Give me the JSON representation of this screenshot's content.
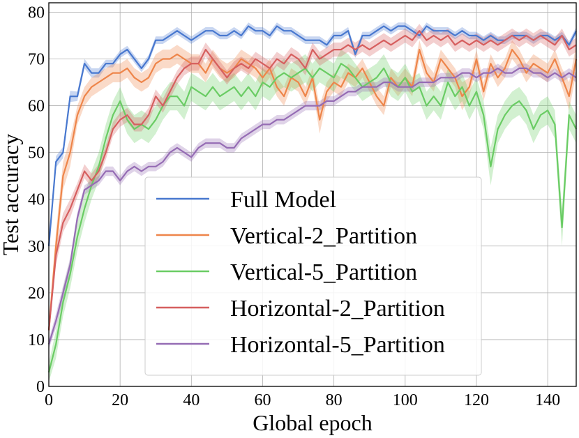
{
  "chart_data": {
    "type": "line",
    "title": "",
    "xlabel": "Global epoch",
    "ylabel": "Test accuracy",
    "xlim": [
      0,
      148
    ],
    "ylim": [
      0,
      82
    ],
    "x_ticks": [
      0,
      20,
      40,
      60,
      80,
      100,
      120,
      140
    ],
    "y_ticks": [
      0,
      10,
      20,
      30,
      40,
      50,
      60,
      70,
      80
    ],
    "grid": true,
    "legend_position": "lower-center",
    "x": [
      0,
      2,
      4,
      6,
      8,
      10,
      12,
      14,
      16,
      18,
      20,
      22,
      24,
      26,
      28,
      30,
      32,
      34,
      36,
      38,
      40,
      42,
      44,
      46,
      48,
      50,
      52,
      54,
      56,
      58,
      60,
      62,
      64,
      66,
      68,
      70,
      72,
      74,
      76,
      78,
      80,
      82,
      84,
      86,
      88,
      90,
      92,
      94,
      96,
      98,
      100,
      102,
      104,
      106,
      108,
      110,
      112,
      114,
      116,
      118,
      120,
      122,
      124,
      126,
      128,
      130,
      132,
      134,
      136,
      138,
      140,
      142,
      144,
      146,
      148
    ],
    "series": [
      {
        "name": "Full Model",
        "color": "#4878cf",
        "values": [
          30,
          48,
          50,
          62,
          62,
          69,
          67,
          67,
          69,
          69,
          71,
          72,
          70,
          68,
          70,
          74,
          74,
          75,
          76,
          75,
          74,
          75,
          76,
          76,
          75,
          75,
          76,
          75,
          77,
          76,
          76,
          75,
          77,
          76,
          76,
          75,
          74,
          74,
          74,
          73,
          75,
          75,
          76,
          71,
          75,
          75,
          76,
          77,
          76,
          77,
          77,
          76,
          75,
          77,
          76,
          76,
          76,
          75,
          76,
          75,
          75,
          74,
          75,
          74,
          74,
          75,
          75,
          75,
          74,
          75,
          75,
          74,
          75,
          73,
          76
        ],
        "band": [
          0.8,
          1.2,
          1.2,
          1.2,
          1.0,
          1.0,
          1.0,
          1.0,
          0.8,
          0.8,
          0.8,
          0.8,
          0.8,
          0.8,
          0.8,
          0.8,
          0.8,
          0.8,
          0.8,
          0.8,
          0.8,
          0.8,
          0.8,
          0.8,
          0.8,
          0.8,
          0.8,
          0.8,
          0.8,
          0.8,
          0.8,
          0.8,
          0.8,
          0.8,
          0.8,
          0.8,
          0.8,
          0.8,
          0.8,
          0.8,
          0.8,
          0.8,
          0.8,
          0.8,
          0.8,
          0.8,
          0.8,
          0.8,
          0.8,
          0.8,
          0.8,
          0.8,
          0.8,
          0.8,
          0.8,
          0.8,
          0.8,
          0.8,
          0.8,
          0.8,
          0.8,
          0.8,
          0.8,
          0.8,
          0.8,
          0.8,
          0.8,
          0.8,
          0.8,
          0.8,
          0.8,
          0.8,
          0.8,
          0.8,
          0.8
        ]
      },
      {
        "name": "Vertical-2_Partition",
        "color": "#ee854a",
        "values": [
          12,
          30,
          45,
          50,
          58,
          62,
          64,
          65,
          66,
          67,
          67,
          68,
          66,
          65,
          66,
          69,
          70,
          70,
          71,
          70,
          69,
          69,
          67,
          70,
          68,
          67,
          68,
          70,
          69,
          68,
          66,
          68,
          64,
          62,
          66,
          65,
          62,
          66,
          57,
          63,
          65,
          64,
          67,
          66,
          68,
          65,
          62,
          60,
          66,
          64,
          66,
          64,
          72,
          67,
          65,
          70,
          68,
          66,
          62,
          64,
          70,
          63,
          69,
          66,
          68,
          72,
          70,
          67,
          69,
          68,
          67,
          70,
          66,
          62,
          70
        ],
        "band": [
          2,
          3,
          3,
          3,
          2,
          2,
          2,
          2,
          2,
          2,
          2,
          2,
          2,
          2,
          2,
          2,
          2,
          2,
          2,
          2,
          2,
          2,
          2,
          2,
          2,
          2,
          2,
          2,
          2,
          2,
          2,
          2,
          2,
          2,
          2,
          2,
          2,
          2,
          3,
          2,
          2,
          2,
          2,
          2,
          2,
          2,
          2,
          2,
          2,
          2,
          2,
          2,
          2,
          2,
          2,
          2,
          2,
          2,
          3,
          2,
          2,
          2,
          2,
          2,
          2,
          2,
          2,
          2,
          2,
          2,
          2,
          2,
          2,
          3,
          3
        ]
      },
      {
        "name": "Vertical-5_Partition",
        "color": "#6acc64",
        "values": [
          3,
          9,
          18,
          24,
          32,
          38,
          43,
          47,
          53,
          58,
          61,
          57,
          55,
          56,
          55,
          57,
          60,
          62,
          62,
          60,
          64,
          63,
          62,
          64,
          62,
          63,
          64,
          62,
          64,
          62,
          65,
          64,
          66,
          67,
          66,
          67,
          68,
          66,
          68,
          67,
          66,
          69,
          68,
          66,
          64,
          65,
          66,
          68,
          65,
          64,
          66,
          63,
          64,
          60,
          62,
          60,
          65,
          62,
          64,
          60,
          63,
          58,
          47,
          55,
          58,
          60,
          61,
          59,
          55,
          58,
          59,
          56,
          34,
          58,
          55
        ],
        "band": [
          2,
          3,
          3,
          3,
          3,
          3,
          3,
          3,
          3,
          3,
          3,
          3,
          3,
          3,
          3,
          3,
          3,
          3,
          3,
          3,
          3,
          3,
          3,
          3,
          3,
          3,
          3,
          3,
          3,
          3,
          3,
          3,
          3,
          3,
          3,
          3,
          3,
          3,
          3,
          3,
          3,
          3,
          3,
          3,
          3,
          3,
          3,
          3,
          3,
          3,
          3,
          3,
          3,
          3,
          3,
          3,
          3,
          3,
          3,
          3,
          3,
          3,
          4,
          3,
          3,
          3,
          3,
          3,
          3,
          3,
          3,
          3,
          4,
          3,
          3
        ]
      },
      {
        "name": "Horizontal-2_Partition",
        "color": "#d65f5f",
        "values": [
          12,
          28,
          35,
          38,
          42,
          46,
          44,
          46,
          50,
          55,
          57,
          58,
          56,
          56,
          58,
          62,
          60,
          63,
          66,
          68,
          69,
          69,
          72,
          70,
          68,
          66,
          68,
          69,
          68,
          70,
          69,
          68,
          70,
          69,
          71,
          70,
          68,
          72,
          70,
          71,
          72,
          72,
          73,
          72,
          73,
          72,
          73,
          74,
          73,
          74,
          75,
          74,
          76,
          74,
          75,
          74,
          75,
          73,
          74,
          73,
          74,
          73,
          74,
          73,
          74,
          75,
          74,
          75,
          74,
          75,
          74,
          73,
          75,
          72,
          73
        ],
        "band": [
          1,
          2,
          2,
          2,
          1.5,
          1.5,
          1.5,
          1.5,
          1.5,
          1.5,
          1.5,
          1.5,
          1.5,
          1.5,
          1.5,
          1.5,
          1.5,
          1.5,
          1.5,
          1.5,
          1.5,
          1.5,
          1.5,
          1.5,
          1.5,
          1.5,
          1.5,
          1.5,
          1.5,
          1.5,
          1.5,
          1.5,
          1.5,
          1.5,
          1.5,
          1.5,
          1.5,
          1.5,
          1.5,
          1.5,
          1.5,
          1.5,
          1.5,
          1.5,
          1.5,
          1.5,
          1.5,
          1.5,
          1.5,
          1.5,
          1.5,
          1.5,
          1.5,
          1.5,
          1.5,
          1.5,
          1.5,
          1.5,
          1.5,
          1.5,
          1.5,
          1.5,
          1.5,
          1.5,
          1.5,
          1.5,
          1.5,
          1.5,
          1.5,
          1.5,
          1.5,
          1.5,
          1.5,
          1.5,
          1.5
        ]
      },
      {
        "name": "Horizontal-5_Partition",
        "color": "#956cb4",
        "values": [
          9,
          14,
          20,
          26,
          36,
          42,
          43,
          44,
          46,
          46,
          44,
          46,
          47,
          46,
          47,
          47,
          48,
          50,
          51,
          50,
          49,
          51,
          52,
          52,
          52,
          51,
          51,
          53,
          54,
          55,
          56,
          56,
          57,
          57,
          58,
          59,
          60,
          60,
          60,
          61,
          61,
          62,
          63,
          63,
          64,
          64,
          64,
          65,
          65,
          64,
          64,
          64,
          65,
          65,
          65,
          66,
          66,
          66,
          67,
          67,
          66,
          67,
          67,
          68,
          67,
          67,
          68,
          68,
          67,
          67,
          66,
          67,
          66,
          67,
          66
        ],
        "band": [
          1,
          1.5,
          1.5,
          1.5,
          1.2,
          1,
          1,
          1,
          1,
          1,
          1,
          1,
          1,
          1,
          1,
          1,
          1,
          1,
          1,
          1,
          1,
          1,
          1,
          1,
          1,
          1,
          1,
          1,
          1,
          1,
          1,
          1,
          1,
          1,
          1,
          1,
          1,
          1,
          1,
          1,
          1,
          1,
          1,
          1,
          1,
          1,
          1,
          1,
          1,
          1,
          1,
          1,
          1,
          1,
          1,
          1,
          1,
          1,
          1,
          1,
          1,
          1,
          1,
          1,
          1,
          1,
          1,
          1,
          1,
          1,
          1,
          1,
          1,
          1,
          1
        ]
      }
    ]
  }
}
